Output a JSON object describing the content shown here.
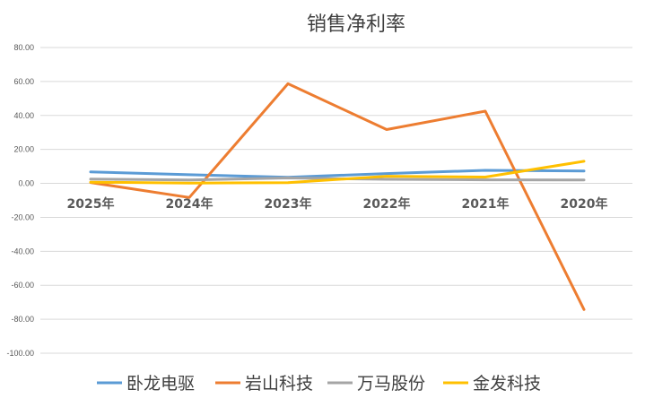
{
  "chart_data": {
    "type": "line",
    "title": "销售净利率",
    "xlabel": "",
    "ylabel": "",
    "categories": [
      "2025年",
      "2024年",
      "2023年",
      "2022年",
      "2021年",
      "2020年"
    ],
    "yticks": [
      "80.00",
      "60.00",
      "40.00",
      "20.00",
      "0.00",
      "-20.00",
      "-40.00",
      "-60.00",
      "-80.00",
      "-100.00"
    ],
    "ylim": [
      -100,
      80
    ],
    "grid": true,
    "legend_position": "bottom",
    "series": [
      {
        "name": "卧龙电驱",
        "color": "#5b9bd5",
        "values": [
          6.8,
          5.1,
          3.6,
          5.8,
          7.7,
          7.3
        ]
      },
      {
        "name": "岩山科技",
        "color": "#ed7d31",
        "values": [
          0.5,
          -8.3,
          58.7,
          31.7,
          42.5,
          -74.3
        ]
      },
      {
        "name": "万马股份",
        "color": "#a5a5a5",
        "values": [
          2.5,
          2.0,
          3.2,
          2.4,
          2.1,
          2.0
        ]
      },
      {
        "name": "金发科技",
        "color": "#ffc000",
        "values": [
          0.7,
          0.2,
          0.4,
          4.2,
          3.7,
          13.0
        ]
      }
    ]
  }
}
